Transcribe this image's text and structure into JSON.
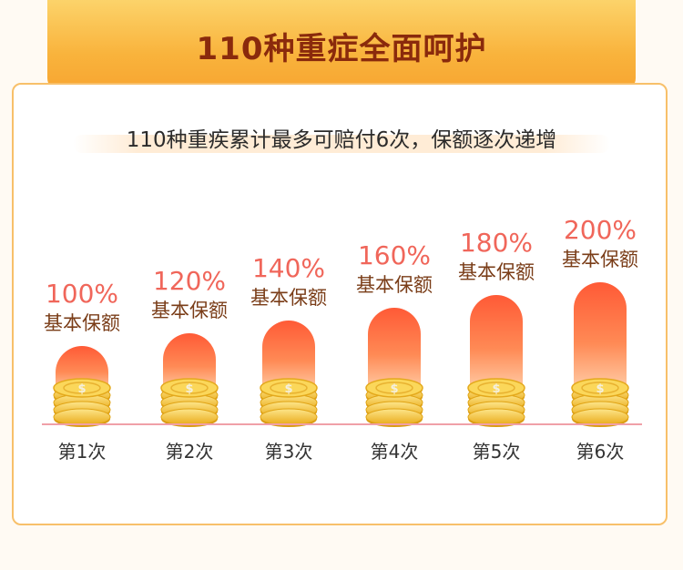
{
  "header": {
    "title": "110种重症全面呵护"
  },
  "subtitle": "110种重疾累计最多可赔付6次，保额逐次递增",
  "colors": {
    "accent": "#f0665a",
    "bar_top": "#ff5a36",
    "bar_bottom": "#ffc9a0",
    "coin": "#f7c52d",
    "baseline": "#f0a0a8"
  },
  "chart_data": {
    "type": "bar",
    "categories": [
      "第1次",
      "第2次",
      "第3次",
      "第4次",
      "第5次",
      "第6次"
    ],
    "values": [
      100,
      120,
      140,
      160,
      180,
      200
    ],
    "value_labels": [
      "100%",
      "120%",
      "140%",
      "160%",
      "180%",
      "200%"
    ],
    "value_sublabel": "基本保额",
    "unit": "%",
    "title": "",
    "xlabel": "",
    "ylabel": "",
    "grid": false,
    "legend": "none"
  }
}
